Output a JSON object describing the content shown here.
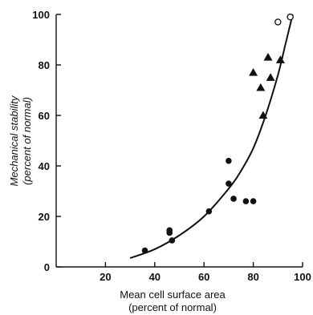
{
  "chart_data": {
    "type": "scatter",
    "title": "",
    "xlabel": [
      "Mean cell surface area",
      "(percent of normal)"
    ],
    "ylabel": [
      "Mechanical stability",
      "(percent of normal)"
    ],
    "xlim": [
      0,
      100
    ],
    "ylim": [
      0,
      100
    ],
    "x_ticks": [
      20,
      40,
      60,
      80,
      100
    ],
    "y_ticks": [
      0,
      20,
      40,
      60,
      80,
      100
    ],
    "grid": false,
    "legend": "none",
    "series": [
      {
        "marker": "filled-circle",
        "points": [
          {
            "x": 36,
            "y": 6.5
          },
          {
            "x": 46,
            "y": 13.5
          },
          {
            "x": 46,
            "y": 14.5
          },
          {
            "x": 47,
            "y": 10.5
          },
          {
            "x": 62,
            "y": 22
          },
          {
            "x": 70,
            "y": 42
          },
          {
            "x": 70,
            "y": 33
          },
          {
            "x": 72,
            "y": 27
          },
          {
            "x": 77,
            "y": 26
          },
          {
            "x": 80,
            "y": 26
          }
        ]
      },
      {
        "marker": "filled-triangle",
        "points": [
          {
            "x": 80,
            "y": 77
          },
          {
            "x": 83,
            "y": 71
          },
          {
            "x": 84,
            "y": 60
          },
          {
            "x": 86,
            "y": 83
          },
          {
            "x": 87,
            "y": 75
          },
          {
            "x": 91,
            "y": 82
          }
        ]
      },
      {
        "marker": "open-circle",
        "points": [
          {
            "x": 90,
            "y": 97
          },
          {
            "x": 95,
            "y": 99
          }
        ]
      }
    ],
    "fit_curve": {
      "type": "curve",
      "points": [
        {
          "x": 30,
          "y": 3.5
        },
        {
          "x": 40,
          "y": 7
        },
        {
          "x": 50,
          "y": 12.5
        },
        {
          "x": 60,
          "y": 20
        },
        {
          "x": 70,
          "y": 31
        },
        {
          "x": 75,
          "y": 38
        },
        {
          "x": 80,
          "y": 47
        },
        {
          "x": 85,
          "y": 60
        },
        {
          "x": 90,
          "y": 76
        },
        {
          "x": 93,
          "y": 88
        },
        {
          "x": 96,
          "y": 100
        }
      ]
    }
  }
}
